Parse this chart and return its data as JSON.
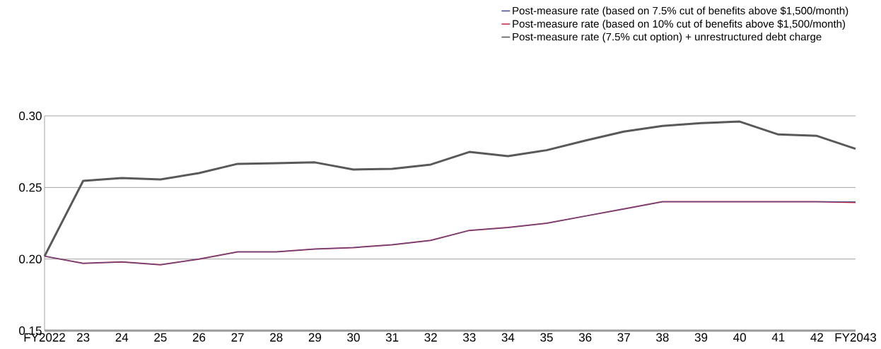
{
  "chart_data": {
    "type": "line",
    "categories": [
      "FY2022",
      "23",
      "24",
      "25",
      "26",
      "27",
      "28",
      "29",
      "30",
      "31",
      "32",
      "33",
      "34",
      "35",
      "36",
      "37",
      "38",
      "39",
      "40",
      "41",
      "42",
      "FY2043"
    ],
    "series": [
      {
        "name": "Post-measure rate (based on 7.5% cut of benefits above $1,500/month)",
        "color": "#4b4f8f",
        "values": [
          0.202,
          0.197,
          0.198,
          0.196,
          0.2,
          0.205,
          0.205,
          0.207,
          0.208,
          0.21,
          0.213,
          0.22,
          0.222,
          0.225,
          0.23,
          0.235,
          0.24,
          0.24,
          0.24,
          0.24,
          0.24,
          0.24
        ]
      },
      {
        "name": "Post-measure rate (based on 10% cut of benefits above $1,500/month)",
        "color": "#c0304a",
        "values": [
          0.202,
          0.197,
          0.198,
          0.196,
          0.2,
          0.205,
          0.205,
          0.207,
          0.208,
          0.21,
          0.213,
          0.22,
          0.222,
          0.225,
          0.23,
          0.235,
          0.24,
          0.24,
          0.24,
          0.24,
          0.24,
          0.2395
        ]
      },
      {
        "name": "Post-measure rate (7.5% cut option) + unrestructured debt charge",
        "color": "#595959",
        "values": [
          0.202,
          0.2546,
          0.2566,
          0.2556,
          0.26,
          0.2665,
          0.267,
          0.2675,
          0.2625,
          0.263,
          0.266,
          0.2748,
          0.2719,
          0.276,
          0.2827,
          0.289,
          0.293,
          0.295,
          0.296,
          0.287,
          0.286,
          0.277
        ]
      }
    ],
    "ylim": [
      0.15,
      0.3
    ],
    "yticks": [
      {
        "value": 0.15,
        "label": "0.15"
      },
      {
        "value": 0.2,
        "label": "0.20"
      },
      {
        "value": 0.25,
        "label": "0.25"
      },
      {
        "value": 0.3,
        "label": "0.30"
      }
    ],
    "grid": "y",
    "legend": "top right",
    "marker": "none",
    "line_style": "solid"
  }
}
